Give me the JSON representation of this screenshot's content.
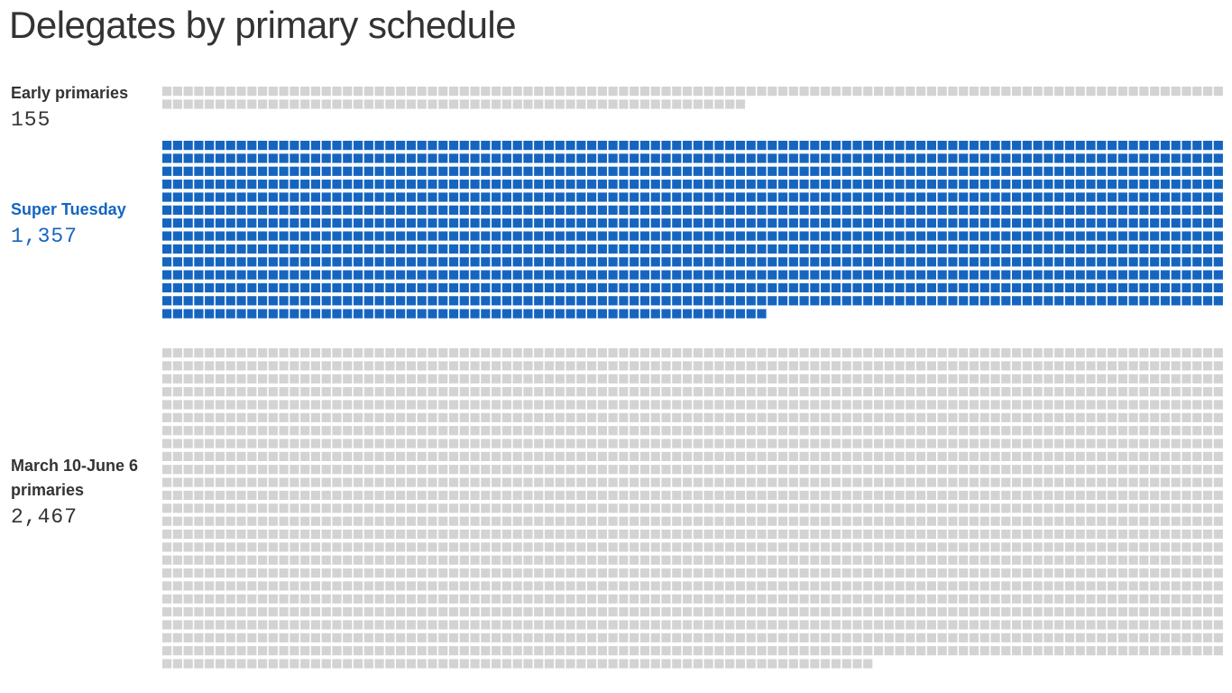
{
  "title": "Delegates by primary schedule",
  "chart_data": {
    "type": "waffle",
    "unit": "delegates",
    "highlight_color": "#1565c0",
    "base_color": "#d3d3d3",
    "groups": [
      {
        "name": "Early primaries",
        "count_label": "155",
        "value": 155,
        "highlighted": false
      },
      {
        "name": "Super Tuesday",
        "count_label": "1,357",
        "value": 1357,
        "highlighted": true
      },
      {
        "name": "March 10-June 6 primaries",
        "count_label": "2,467",
        "value": 2467,
        "highlighted": false
      }
    ]
  }
}
